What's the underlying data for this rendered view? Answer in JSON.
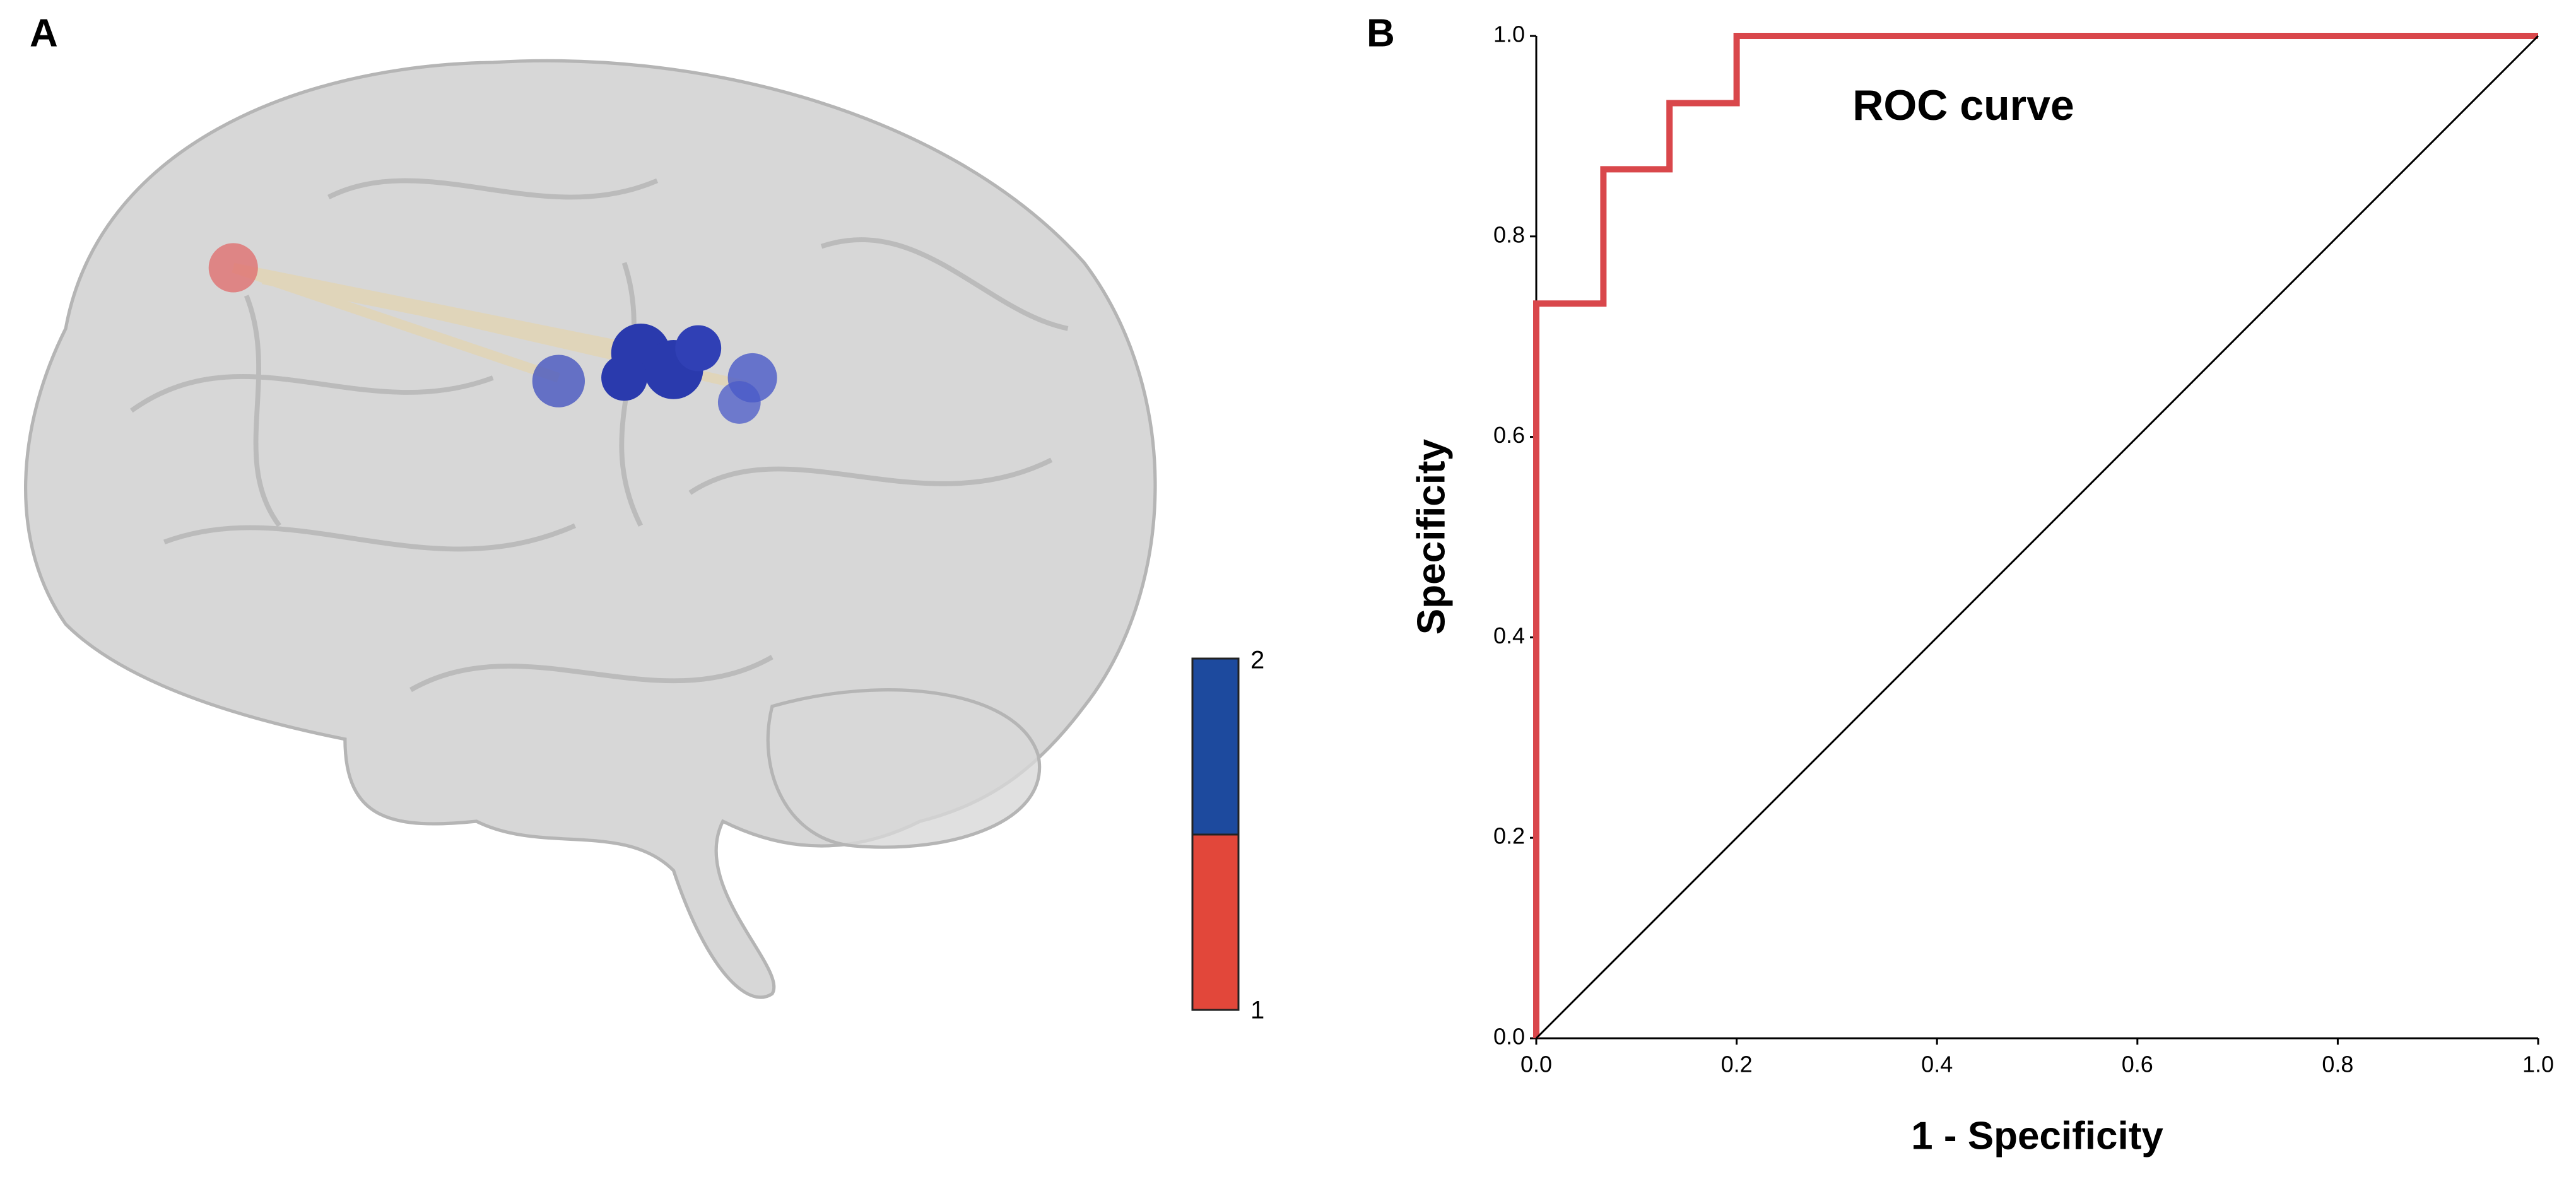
{
  "panel_a": {
    "label": "A",
    "colorbar": {
      "labels": [
        "2",
        "1"
      ],
      "colors": [
        "#1d4a9e",
        "#e2473a"
      ]
    }
  },
  "chart_data": {
    "type": "line",
    "panel_label": "B",
    "annotation": "ROC curve",
    "xlabel": "1 - Specificity",
    "ylabel": "Specificity",
    "xlim": [
      0,
      1
    ],
    "ylim": [
      0,
      1
    ],
    "xticks": [
      {
        "value": 0,
        "label": "0.0"
      },
      {
        "value": 0.2,
        "label": "0.2"
      },
      {
        "value": 0.4,
        "label": "0.4"
      },
      {
        "value": 0.6,
        "label": "0.6"
      },
      {
        "value": 0.8,
        "label": "0.8"
      },
      {
        "value": 1,
        "label": "1.0"
      }
    ],
    "yticks": [
      {
        "value": 0,
        "label": "0.0"
      },
      {
        "value": 0.2,
        "label": "0.2"
      },
      {
        "value": 0.4,
        "label": "0.4"
      },
      {
        "value": 0.6,
        "label": "0.6"
      },
      {
        "value": 0.8,
        "label": "0.8"
      },
      {
        "value": 1,
        "label": "1.0"
      }
    ],
    "grid": false,
    "series": [
      {
        "color": "#d9474b",
        "x": [
          0,
          0,
          0.067,
          0.067,
          0.133,
          0.133,
          0.2,
          0.2,
          1
        ],
        "values": [
          0,
          0.733,
          0.733,
          0.867,
          0.867,
          0.933,
          0.933,
          1,
          1
        ]
      },
      {
        "color": "#000000",
        "x": [
          0,
          1
        ],
        "values": [
          0,
          1
        ]
      }
    ]
  }
}
